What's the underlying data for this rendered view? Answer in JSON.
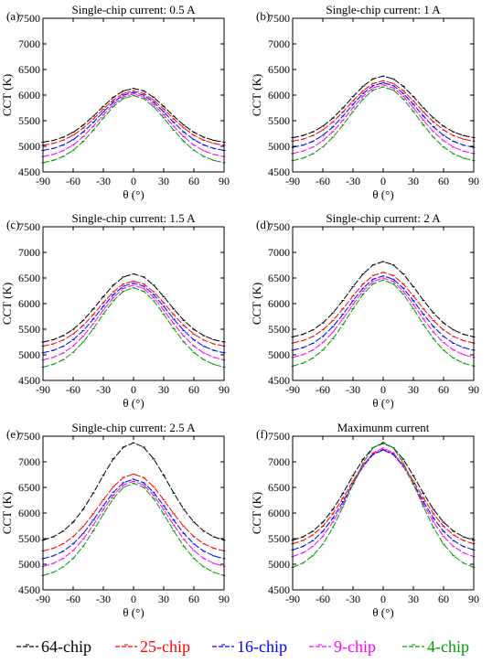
{
  "colors": {
    "64-chip": "#000000",
    "25-chip": "#ff0000",
    "16-chip": "#0000ff",
    "9-chip": "#ff00ff",
    "4-chip": "#009900"
  },
  "legend": [
    "64-chip",
    "25-chip",
    "16-chip",
    "9-chip",
    "4-chip"
  ],
  "chart_data": [
    {
      "type": "line",
      "panel": "(a)",
      "title": "Single-chip current: 0.5 A",
      "xlabel": "θ (°)",
      "ylabel": "CCT (K)",
      "xlim": [
        -90,
        90
      ],
      "ylim": [
        4500,
        7500
      ],
      "xticks": [
        -90,
        -60,
        -30,
        0,
        30,
        60,
        90
      ],
      "yticks": [
        4500,
        5000,
        5500,
        6000,
        6500,
        7000,
        7500
      ],
      "x": [
        -90,
        -80,
        -70,
        -60,
        -50,
        -40,
        -30,
        -20,
        -10,
        0,
        10,
        20,
        30,
        40,
        50,
        60,
        70,
        80,
        90
      ],
      "series": [
        {
          "name": "64-chip",
          "center": 6130,
          "edge": 5080
        },
        {
          "name": "25-chip",
          "center": 6080,
          "edge": 5020
        },
        {
          "name": "16-chip",
          "center": 6050,
          "edge": 4920
        },
        {
          "name": "9-chip",
          "center": 6020,
          "edge": 4800
        },
        {
          "name": "4-chip",
          "center": 5990,
          "edge": 4680
        }
      ]
    },
    {
      "type": "line",
      "panel": "(b)",
      "title": "Single-chip current: 1 A",
      "xlabel": "θ (°)",
      "ylabel": "CCT (K)",
      "xlim": [
        -90,
        90
      ],
      "ylim": [
        4500,
        7500
      ],
      "xticks": [
        -90,
        -60,
        -30,
        0,
        30,
        60,
        90
      ],
      "yticks": [
        4500,
        5000,
        5500,
        6000,
        6500,
        7000,
        7500
      ],
      "x": [
        -90,
        -80,
        -70,
        -60,
        -50,
        -40,
        -30,
        -20,
        -10,
        0,
        10,
        20,
        30,
        40,
        50,
        60,
        70,
        80,
        90
      ],
      "series": [
        {
          "name": "64-chip",
          "center": 6370,
          "edge": 5170
        },
        {
          "name": "25-chip",
          "center": 6280,
          "edge": 5100
        },
        {
          "name": "16-chip",
          "center": 6240,
          "edge": 4980
        },
        {
          "name": "9-chip",
          "center": 6200,
          "edge": 4860
        },
        {
          "name": "4-chip",
          "center": 6160,
          "edge": 4720
        }
      ]
    },
    {
      "type": "line",
      "panel": "(c)",
      "title": "Single-chip current: 1.5 A",
      "xlabel": "θ (°)",
      "ylabel": "CCT (K)",
      "xlim": [
        -90,
        90
      ],
      "ylim": [
        4500,
        7500
      ],
      "xticks": [
        -90,
        -60,
        -30,
        0,
        30,
        60,
        90
      ],
      "yticks": [
        4500,
        5000,
        5500,
        6000,
        6500,
        7000,
        7500
      ],
      "x": [
        -90,
        -80,
        -70,
        -60,
        -50,
        -40,
        -30,
        -20,
        -10,
        0,
        10,
        20,
        30,
        40,
        50,
        60,
        70,
        80,
        90
      ],
      "series": [
        {
          "name": "64-chip",
          "center": 6580,
          "edge": 5250
        },
        {
          "name": "25-chip",
          "center": 6440,
          "edge": 5170
        },
        {
          "name": "16-chip",
          "center": 6400,
          "edge": 5040
        },
        {
          "name": "9-chip",
          "center": 6360,
          "edge": 4900
        },
        {
          "name": "4-chip",
          "center": 6310,
          "edge": 4760
        }
      ]
    },
    {
      "type": "line",
      "panel": "(d)",
      "title": "Single-chip current: 2 A",
      "xlabel": "θ (°)",
      "ylabel": "CCT (K)",
      "xlim": [
        -90,
        90
      ],
      "ylim": [
        4500,
        7500
      ],
      "xticks": [
        -90,
        -60,
        -30,
        0,
        30,
        60,
        90
      ],
      "yticks": [
        4500,
        5000,
        5500,
        6000,
        6500,
        7000,
        7500
      ],
      "x": [
        -90,
        -80,
        -70,
        -60,
        -50,
        -40,
        -30,
        -20,
        -10,
        0,
        10,
        20,
        30,
        40,
        50,
        60,
        70,
        80,
        90
      ],
      "series": [
        {
          "name": "64-chip",
          "center": 6820,
          "edge": 5350
        },
        {
          "name": "25-chip",
          "center": 6610,
          "edge": 5230
        },
        {
          "name": "16-chip",
          "center": 6540,
          "edge": 5090
        },
        {
          "name": "9-chip",
          "center": 6500,
          "edge": 4950
        },
        {
          "name": "4-chip",
          "center": 6460,
          "edge": 4780
        }
      ]
    },
    {
      "type": "line",
      "panel": "(e)",
      "title": "Single-chip current: 2.5 A",
      "xlabel": "θ (°)",
      "ylabel": "CCT (K)",
      "xlim": [
        -90,
        90
      ],
      "ylim": [
        4500,
        7500
      ],
      "xticks": [
        -90,
        -60,
        -30,
        0,
        30,
        60,
        90
      ],
      "yticks": [
        4500,
        5000,
        5500,
        6000,
        6500,
        7000,
        7500
      ],
      "x": [
        -90,
        -80,
        -70,
        -60,
        -50,
        -40,
        -30,
        -20,
        -10,
        0,
        10,
        20,
        30,
        40,
        50,
        60,
        70,
        80,
        90
      ],
      "series": [
        {
          "name": "64-chip",
          "center": 7370,
          "edge": 5470
        },
        {
          "name": "25-chip",
          "center": 6760,
          "edge": 5260
        },
        {
          "name": "16-chip",
          "center": 6660,
          "edge": 5110
        },
        {
          "name": "9-chip",
          "center": 6620,
          "edge": 4960
        },
        {
          "name": "4-chip",
          "center": 6580,
          "edge": 4780
        }
      ]
    },
    {
      "type": "line",
      "panel": "(f)",
      "title": "Maximunm current",
      "xlabel": "θ (°)",
      "ylabel": "CCT (K)",
      "xlim": [
        -90,
        90
      ],
      "ylim": [
        4500,
        7500
      ],
      "xticks": [
        -90,
        -60,
        -30,
        0,
        30,
        60,
        90
      ],
      "yticks": [
        4500,
        5000,
        5500,
        6000,
        6500,
        7000,
        7500
      ],
      "x": [
        -90,
        -80,
        -70,
        -60,
        -50,
        -40,
        -30,
        -20,
        -10,
        0,
        10,
        20,
        30,
        40,
        50,
        60,
        70,
        80,
        90
      ],
      "series": [
        {
          "name": "64-chip",
          "center": 7360,
          "edge": 5470
        },
        {
          "name": "25-chip",
          "center": 7240,
          "edge": 5400
        },
        {
          "name": "16-chip",
          "center": 7230,
          "edge": 5280
        },
        {
          "name": "9-chip",
          "center": 7270,
          "edge": 5150
        },
        {
          "name": "4-chip",
          "center": 7380,
          "edge": 4940
        }
      ]
    }
  ]
}
